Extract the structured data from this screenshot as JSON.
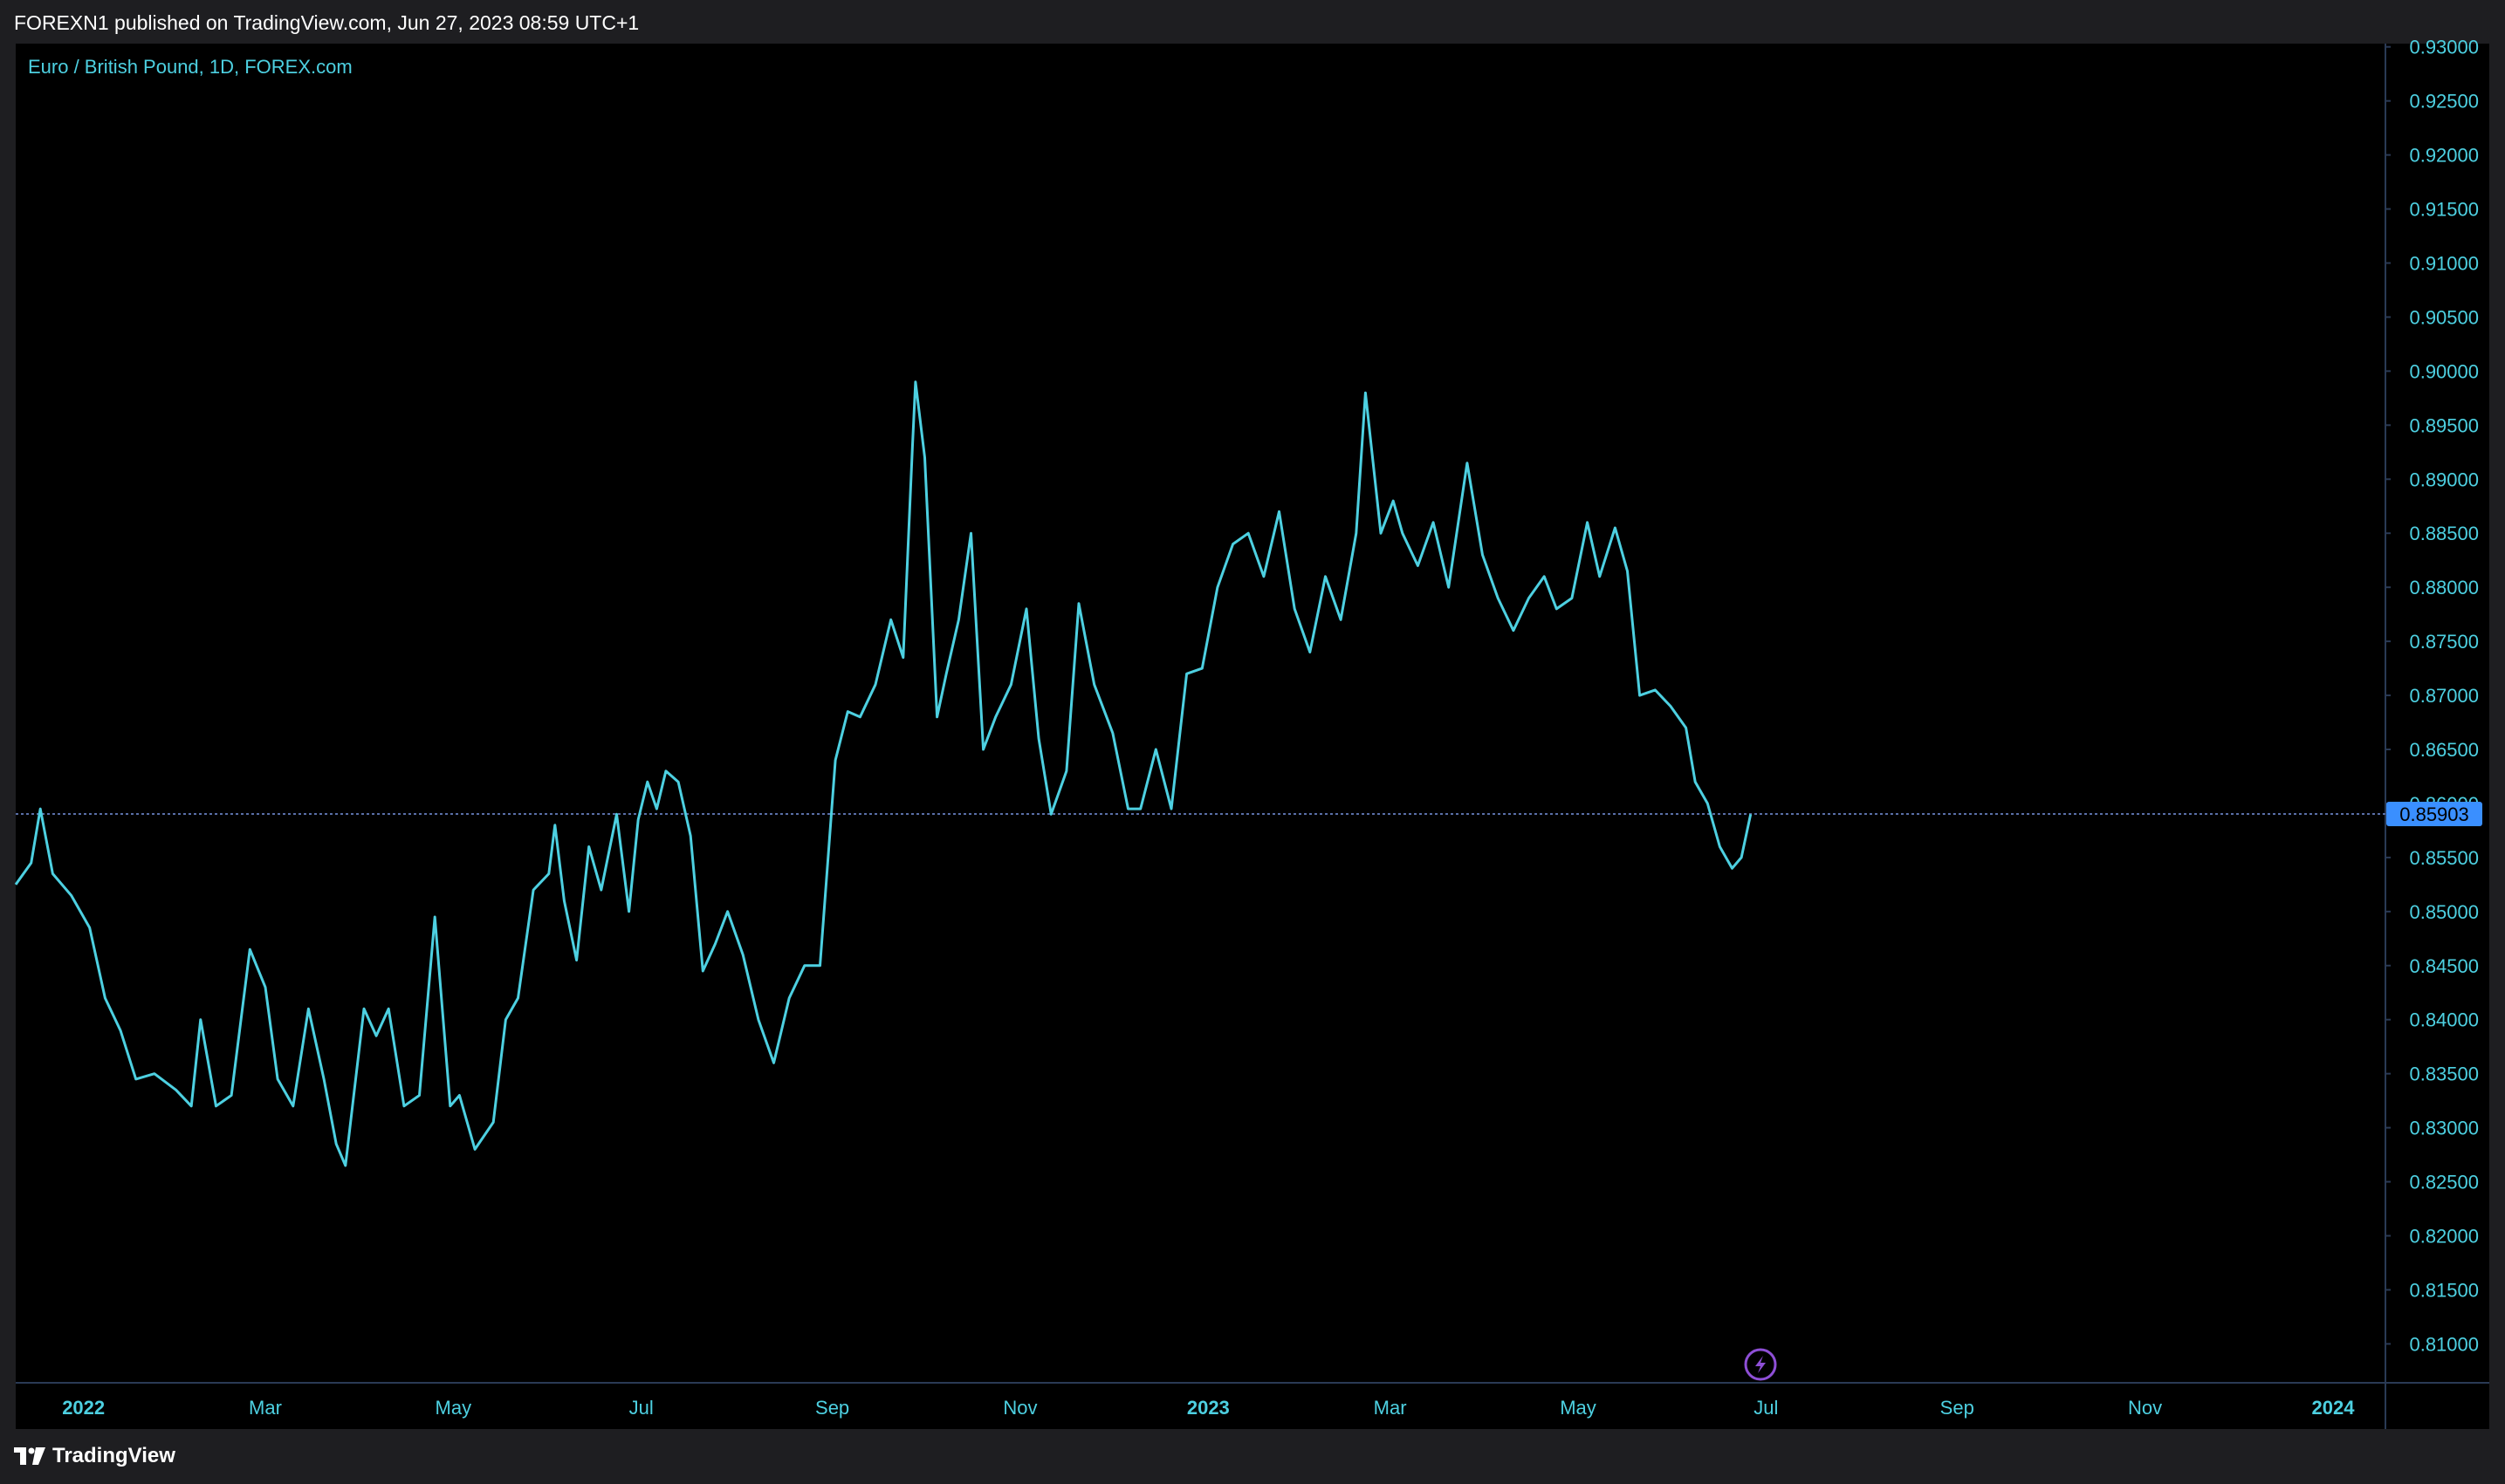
{
  "header": {
    "published_text": "FOREXN1 published on TradingView.com, Jun 27, 2023 08:59 UTC+1"
  },
  "footer": {
    "brand": "TradingView",
    "logo_icon": "tradingview-logo-icon"
  },
  "colors": {
    "line": "#4dd0e1",
    "axis_text": "#4dd0e1",
    "background": "#000000",
    "frame": "#1e1e21",
    "price_badge": "#3a8fff",
    "price_line": "#5a6fa8",
    "lightning": "#8e4fd6"
  },
  "indicator_icon": "lightning-icon",
  "chart_data": {
    "type": "line",
    "title": "Euro / British Pound, 1D, FOREX.com",
    "current_price_label": "0.85903",
    "current_price": 0.85903,
    "y_ticks": [
      "0.93000",
      "0.92500",
      "0.92000",
      "0.91500",
      "0.91000",
      "0.90500",
      "0.90000",
      "0.89500",
      "0.89000",
      "0.88500",
      "0.88000",
      "0.87500",
      "0.87000",
      "0.86500",
      "0.86000",
      "0.85500",
      "0.85000",
      "0.84500",
      "0.84000",
      "0.83500",
      "0.83000",
      "0.82500",
      "0.82000",
      "0.81500",
      "0.81000"
    ],
    "ylim": [
      0.8064,
      0.9303
    ],
    "xlim": [
      "2021-12-10",
      "2024-01-18"
    ],
    "x_ticks": [
      {
        "label": "2022",
        "date": "2022-01-01",
        "bold": true
      },
      {
        "label": "Mar",
        "date": "2022-03-01",
        "bold": false
      },
      {
        "label": "May",
        "date": "2022-05-01",
        "bold": false
      },
      {
        "label": "Jul",
        "date": "2022-07-01",
        "bold": false
      },
      {
        "label": "Sep",
        "date": "2022-09-01",
        "bold": false
      },
      {
        "label": "Nov",
        "date": "2022-11-01",
        "bold": false
      },
      {
        "label": "2023",
        "date": "2023-01-01",
        "bold": true
      },
      {
        "label": "Mar",
        "date": "2023-03-01",
        "bold": false
      },
      {
        "label": "May",
        "date": "2023-05-01",
        "bold": false
      },
      {
        "label": "Jul",
        "date": "2023-07-01",
        "bold": false
      },
      {
        "label": "Sep",
        "date": "2023-09-01",
        "bold": false
      },
      {
        "label": "Nov",
        "date": "2023-11-01",
        "bold": false
      },
      {
        "label": "2024",
        "date": "2024-01-01",
        "bold": true
      }
    ],
    "series": [
      {
        "points": [
          [
            "2021-12-10",
            0.8525
          ],
          [
            "2021-12-15",
            0.8545
          ],
          [
            "2021-12-18",
            0.8595
          ],
          [
            "2021-12-22",
            0.8535
          ],
          [
            "2021-12-28",
            0.8515
          ],
          [
            "2022-01-03",
            0.8485
          ],
          [
            "2022-01-08",
            0.842
          ],
          [
            "2022-01-13",
            0.839
          ],
          [
            "2022-01-18",
            0.8345
          ],
          [
            "2022-01-24",
            0.835
          ],
          [
            "2022-01-31",
            0.8335
          ],
          [
            "2022-02-05",
            0.832
          ],
          [
            "2022-02-08",
            0.84
          ],
          [
            "2022-02-13",
            0.832
          ],
          [
            "2022-02-18",
            0.833
          ],
          [
            "2022-02-24",
            0.8465
          ],
          [
            "2022-03-01",
            0.843
          ],
          [
            "2022-03-05",
            0.8345
          ],
          [
            "2022-03-10",
            0.832
          ],
          [
            "2022-03-15",
            0.841
          ],
          [
            "2022-03-20",
            0.8345
          ],
          [
            "2022-03-24",
            0.8285
          ],
          [
            "2022-03-27",
            0.8265
          ],
          [
            "2022-04-02",
            0.841
          ],
          [
            "2022-04-06",
            0.8385
          ],
          [
            "2022-04-10",
            0.841
          ],
          [
            "2022-04-15",
            0.832
          ],
          [
            "2022-04-20",
            0.833
          ],
          [
            "2022-04-25",
            0.8495
          ],
          [
            "2022-04-30",
            0.832
          ],
          [
            "2022-05-03",
            0.833
          ],
          [
            "2022-05-08",
            0.828
          ],
          [
            "2022-05-14",
            0.8305
          ],
          [
            "2022-05-18",
            0.84
          ],
          [
            "2022-05-22",
            0.842
          ],
          [
            "2022-05-27",
            0.852
          ],
          [
            "2022-06-01",
            0.8535
          ],
          [
            "2022-06-03",
            0.858
          ],
          [
            "2022-06-06",
            0.851
          ],
          [
            "2022-06-10",
            0.8455
          ],
          [
            "2022-06-14",
            0.856
          ],
          [
            "2022-06-18",
            0.852
          ],
          [
            "2022-06-23",
            0.859
          ],
          [
            "2022-06-27",
            0.85
          ],
          [
            "2022-06-30",
            0.8585
          ],
          [
            "2022-07-03",
            0.862
          ],
          [
            "2022-07-06",
            0.8595
          ],
          [
            "2022-07-09",
            0.863
          ],
          [
            "2022-07-13",
            0.862
          ],
          [
            "2022-07-17",
            0.857
          ],
          [
            "2022-07-21",
            0.8445
          ],
          [
            "2022-07-25",
            0.847
          ],
          [
            "2022-07-29",
            0.85
          ],
          [
            "2022-08-03",
            0.846
          ],
          [
            "2022-08-08",
            0.84
          ],
          [
            "2022-08-13",
            0.836
          ],
          [
            "2022-08-18",
            0.842
          ],
          [
            "2022-08-23",
            0.845
          ],
          [
            "2022-08-28",
            0.845
          ],
          [
            "2022-09-02",
            0.864
          ],
          [
            "2022-09-06",
            0.8685
          ],
          [
            "2022-09-10",
            0.868
          ],
          [
            "2022-09-15",
            0.871
          ],
          [
            "2022-09-20",
            0.877
          ],
          [
            "2022-09-24",
            0.8735
          ],
          [
            "2022-09-27",
            0.893
          ],
          [
            "2022-09-28",
            0.899
          ],
          [
            "2022-10-01",
            0.892
          ],
          [
            "2022-10-05",
            0.868
          ],
          [
            "2022-10-08",
            0.872
          ],
          [
            "2022-10-12",
            0.877
          ],
          [
            "2022-10-16",
            0.885
          ],
          [
            "2022-10-20",
            0.865
          ],
          [
            "2022-10-24",
            0.868
          ],
          [
            "2022-10-29",
            0.871
          ],
          [
            "2022-11-03",
            0.878
          ],
          [
            "2022-11-07",
            0.866
          ],
          [
            "2022-11-11",
            0.859
          ],
          [
            "2022-11-16",
            0.863
          ],
          [
            "2022-11-20",
            0.8785
          ],
          [
            "2022-11-25",
            0.871
          ],
          [
            "2022-12-01",
            0.8665
          ],
          [
            "2022-12-06",
            0.8595
          ],
          [
            "2022-12-10",
            0.8595
          ],
          [
            "2022-12-15",
            0.865
          ],
          [
            "2022-12-20",
            0.8595
          ],
          [
            "2022-12-25",
            0.872
          ],
          [
            "2022-12-30",
            0.8725
          ],
          [
            "2023-01-04",
            0.88
          ],
          [
            "2023-01-09",
            0.884
          ],
          [
            "2023-01-14",
            0.885
          ],
          [
            "2023-01-19",
            0.881
          ],
          [
            "2023-01-24",
            0.887
          ],
          [
            "2023-01-29",
            0.878
          ],
          [
            "2023-02-03",
            0.874
          ],
          [
            "2023-02-08",
            0.881
          ],
          [
            "2023-02-13",
            0.877
          ],
          [
            "2023-02-18",
            0.885
          ],
          [
            "2023-02-21",
            0.898
          ],
          [
            "2023-02-26",
            0.885
          ],
          [
            "2023-03-02",
            0.888
          ],
          [
            "2023-03-05",
            0.885
          ],
          [
            "2023-03-10",
            0.882
          ],
          [
            "2023-03-15",
            0.886
          ],
          [
            "2023-03-20",
            0.88
          ],
          [
            "2023-03-26",
            0.8915
          ],
          [
            "2023-03-31",
            0.883
          ],
          [
            "2023-04-05",
            0.879
          ],
          [
            "2023-04-10",
            0.876
          ],
          [
            "2023-04-15",
            0.879
          ],
          [
            "2023-04-20",
            0.881
          ],
          [
            "2023-04-24",
            0.878
          ],
          [
            "2023-04-29",
            0.879
          ],
          [
            "2023-05-04",
            0.886
          ],
          [
            "2023-05-08",
            0.881
          ],
          [
            "2023-05-13",
            0.8855
          ],
          [
            "2023-05-17",
            0.8815
          ],
          [
            "2023-05-21",
            0.87
          ],
          [
            "2023-05-26",
            0.8705
          ],
          [
            "2023-05-31",
            0.869
          ],
          [
            "2023-06-05",
            0.867
          ],
          [
            "2023-06-08",
            0.862
          ],
          [
            "2023-06-12",
            0.86
          ],
          [
            "2023-06-16",
            0.856
          ],
          [
            "2023-06-20",
            0.854
          ],
          [
            "2023-06-23",
            0.855
          ],
          [
            "2023-06-26",
            0.859
          ]
        ]
      }
    ]
  }
}
